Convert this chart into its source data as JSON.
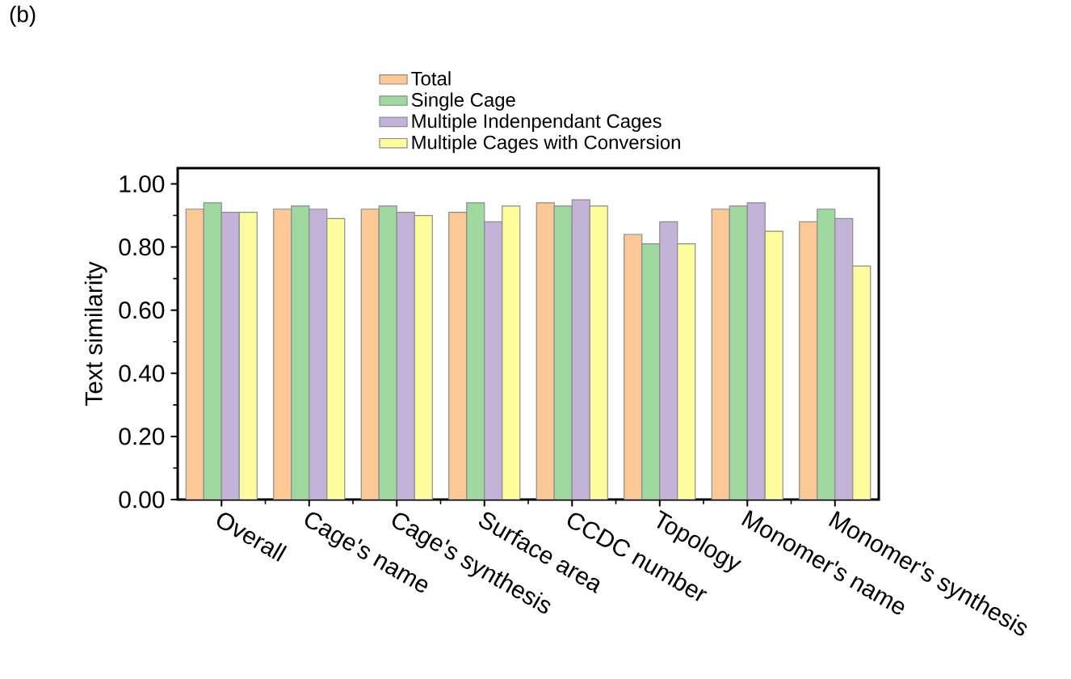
{
  "chart_data": {
    "type": "bar",
    "ylabel": "Text similarity",
    "annotations": [
      "(b)"
    ],
    "categories": [
      "Overall",
      "Cage's name",
      "Cage's synthesis",
      "Surface area",
      "CCDC number",
      "Topology",
      "Monomer's name",
      "Monomer's synthesis"
    ],
    "series": [
      {
        "name": "Total",
        "color": "#fcc896",
        "values": [
          0.92,
          0.92,
          0.92,
          0.91,
          0.94,
          0.84,
          0.92,
          0.88
        ]
      },
      {
        "name": "Single Cage",
        "color": "#9fd9a0",
        "values": [
          0.94,
          0.93,
          0.93,
          0.94,
          0.93,
          0.81,
          0.93,
          0.92
        ]
      },
      {
        "name": "Multiple Indenpendant Cages",
        "color": "#c4b3d9",
        "values": [
          0.91,
          0.92,
          0.91,
          0.88,
          0.95,
          0.88,
          0.94,
          0.89
        ]
      },
      {
        "name": "Multiple Cages with Conversion",
        "color": "#fdfd9e",
        "values": [
          0.91,
          0.89,
          0.9,
          0.93,
          0.93,
          0.81,
          0.85,
          0.74
        ]
      }
    ],
    "ylim": [
      0,
      1.05
    ],
    "yticks": [
      {
        "value": 0,
        "label": "0.00"
      },
      {
        "value": 0.2,
        "label": "0.20"
      },
      {
        "value": 0.4,
        "label": "0.40"
      },
      {
        "value": 0.6,
        "label": "0.60"
      },
      {
        "value": 0.8,
        "label": "0.80"
      },
      {
        "value": 1.0,
        "label": "1.00"
      }
    ],
    "legend": "top"
  }
}
